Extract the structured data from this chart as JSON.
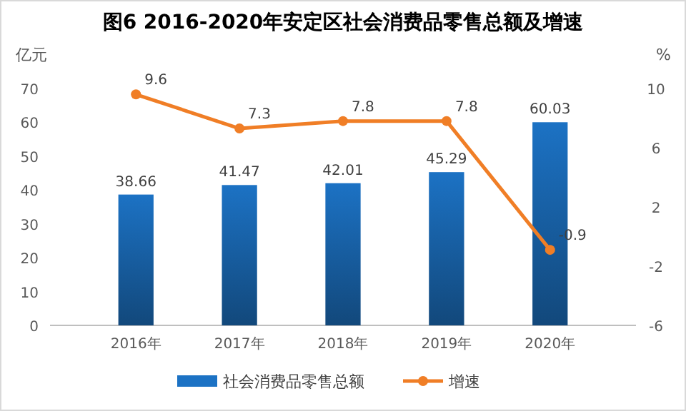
{
  "chart_data": {
    "type": "bar",
    "title": "图6   2016-2020年安定区社会消费品零售总额及增速",
    "ylabel": "亿元",
    "y2label": "%",
    "categories": [
      "2016年",
      "2017年",
      "2018年",
      "2019年",
      "2020年"
    ],
    "series": [
      {
        "name": "社会消费品零售总额",
        "color": "#1c72c4",
        "values": [
          38.66,
          41.47,
          42.01,
          45.29,
          60.03
        ]
      },
      {
        "name": "增速",
        "type": "line",
        "axis": "y2",
        "color": "#f07e26",
        "values": [
          9.6,
          7.3,
          7.8,
          7.8,
          -0.9
        ]
      }
    ],
    "ylim": [
      0,
      70
    ],
    "yticks": [
      0,
      10,
      20,
      30,
      40,
      50,
      60,
      70
    ],
    "y2lim": [
      -6,
      10
    ],
    "y2ticks": [
      -6,
      -2,
      2,
      6,
      10
    ],
    "data_labels": true,
    "legend": "bottom",
    "marker": "circle",
    "grid": false
  }
}
